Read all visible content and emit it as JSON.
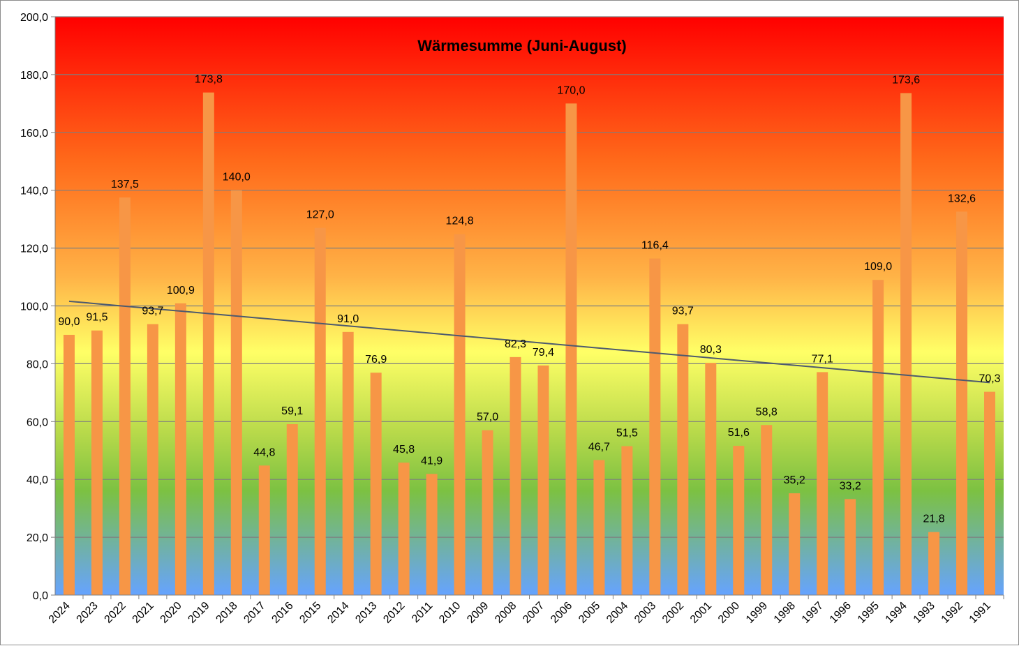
{
  "chart_data": {
    "type": "bar",
    "title": "Wärmesumme (Juni-August)",
    "xlabel": "",
    "ylabel": "",
    "ylim": [
      0,
      200
    ],
    "ytick_step": 20,
    "grid": true,
    "legend": "none",
    "categories": [
      "2024",
      "2023",
      "2022",
      "2021",
      "2020",
      "2019",
      "2018",
      "2017",
      "2016",
      "2015",
      "2014",
      "2013",
      "2012",
      "2011",
      "2010",
      "2009",
      "2008",
      "2007",
      "2006",
      "2005",
      "2004",
      "2003",
      "2002",
      "2001",
      "2000",
      "1999",
      "1998",
      "1997",
      "1996",
      "1995",
      "1994",
      "1993",
      "1992",
      "1991"
    ],
    "values": [
      90.0,
      91.5,
      137.5,
      93.7,
      100.9,
      173.8,
      140.0,
      44.8,
      59.1,
      127.0,
      91.0,
      76.9,
      45.8,
      41.9,
      124.8,
      57.0,
      82.3,
      79.4,
      170.0,
      46.7,
      51.5,
      116.4,
      93.7,
      80.3,
      51.6,
      58.8,
      35.2,
      77.1,
      33.2,
      109.0,
      173.6,
      21.8,
      132.6,
      70.3
    ],
    "data_labels": [
      "90,0",
      "91,5",
      "137,5",
      "93,7",
      "100,9",
      "173,8",
      "140,0",
      "44,8",
      "59,1",
      "127,0",
      "91,0",
      "76,9",
      "45,8",
      "41,9",
      "124,8",
      "57,0",
      "82,3",
      "79,4",
      "170,0",
      "46,7",
      "51,5",
      "116,4",
      "93,7",
      "80,3",
      "51,6",
      "58,8",
      "35,2",
      "77,1",
      "33,2",
      "109,0",
      "173,6",
      "21,8",
      "132,6",
      "70,3"
    ],
    "ytick_labels": [
      "0,0",
      "20,0",
      "40,0",
      "60,0",
      "80,0",
      "100,0",
      "120,0",
      "140,0",
      "160,0",
      "180,0",
      "200,0"
    ],
    "trendline": {
      "type": "linear",
      "start_value": 101.6,
      "end_value": 73.5,
      "color": "#4d5a6e"
    },
    "colors": {
      "bar": "#f79646",
      "bar_highlight": "#f4a460",
      "background_top": "#ff0000",
      "background_mid": "#ffff66",
      "background_bottom": "#66a3ff",
      "grid": "#7f7f7f"
    }
  }
}
